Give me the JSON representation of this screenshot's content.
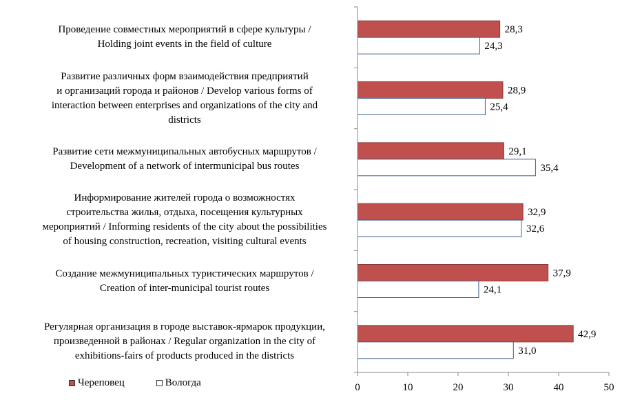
{
  "chart_data": {
    "type": "bar",
    "orientation": "horizontal",
    "categories": [
      "Проведение совместных мероприятий в сфере культуры / Holding joint events in the field of culture",
      "Развитие различных форм взаимодействия предприятий и организаций города и районов / Develop various forms of interaction between enterprises and organizations of the city and districts",
      "Развитие сети межмуниципальных автобусных маршрутов / Development of a network of intermunicipal bus routes",
      "Информирование жителей города о возможностях строительства жилья, отдыха, посещения культурных мероприятий / Informing residents of the city about the possibilities of housing construction, recreation, visiting cultural events",
      "Создание межмуниципальных туристических маршрутов / Creation of inter-municipal tourist routes",
      "Регулярная организация в городе выставок-ярмарок продукции, произведенной в районах / Regular organization in the city of exhibitions-fairs of products produced in the districts"
    ],
    "category_lines": [
      [
        "Проведение совместных мероприятий в сфере культуры /",
        "Holding joint events in the field of culture"
      ],
      [
        "Развитие различных форм взаимодействия предприятий",
        "и организаций города и районов / Develop various forms of",
        "interaction between enterprises and organizations of the city and",
        "districts"
      ],
      [
        "Развитие сети межмуниципальных автобусных маршрутов /",
        "Development of a network of intermunicipal bus routes"
      ],
      [
        "Информирование жителей города о возможностях",
        "строительства жилья, отдыха, посещения культурных",
        "мероприятий / Informing residents of the city about the possibilities",
        "of housing construction, recreation, visiting cultural events"
      ],
      [
        "Создание межмуниципальных туристических маршрутов /",
        "Creation of inter-municipal tourist routes"
      ],
      [
        "Регулярная организация в городе выставок-ярмарок продукции,",
        "произведенной в районах / Regular organization in the city of",
        "exhibitions-fairs of products produced in the districts"
      ]
    ],
    "series": [
      {
        "name": "Череповец",
        "values": [
          28.3,
          28.9,
          29.1,
          32.9,
          37.9,
          42.9
        ],
        "labels": [
          "28,3",
          "28,9",
          "29,1",
          "32,9",
          "37,9",
          "42,9"
        ],
        "color": "#c0504d"
      },
      {
        "name": "Вологда",
        "values": [
          24.3,
          25.4,
          35.4,
          32.6,
          24.1,
          31.0
        ],
        "labels": [
          "24,3",
          "25,4",
          "35,4",
          "32,6",
          "24,1",
          "31,0"
        ],
        "color": "#ffffff"
      }
    ],
    "xlim": [
      0,
      50
    ],
    "xticks": [
      "0",
      "10",
      "20",
      "30",
      "40",
      "50"
    ],
    "title": "",
    "xlabel": "",
    "ylabel": "",
    "legend_position": "bottom-left",
    "grid": false
  }
}
